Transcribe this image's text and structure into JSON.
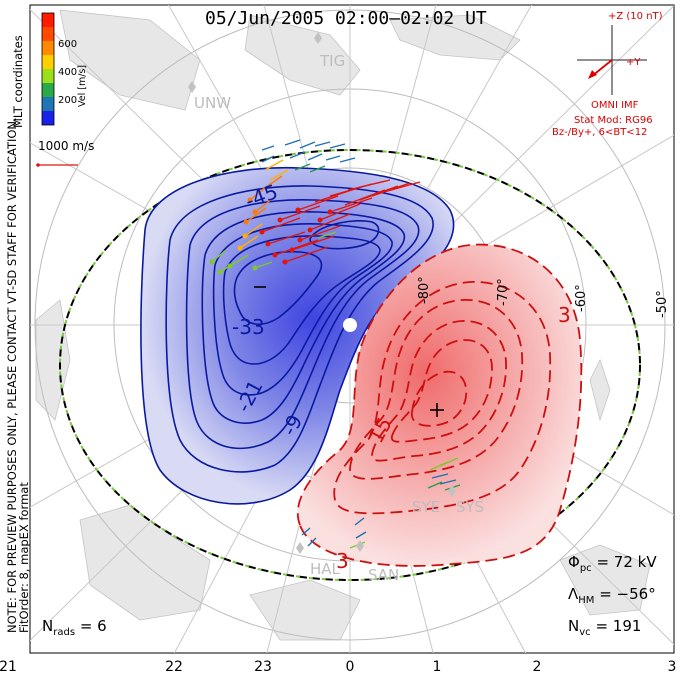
{
  "title": "05/Jun/2005 02:00–02:02 UT",
  "colorbar": {
    "title": "MLT coordinates",
    "unit_label": "Vel [m/s]",
    "ticks": [
      "600",
      "400",
      "200"
    ],
    "colors": [
      "#ff1b00",
      "#ff6a00",
      "#ffb000",
      "#9be01a",
      "#2aa84a",
      "#1e77b4",
      "#1d3fd6",
      "#1a20e8"
    ]
  },
  "vector_scale": "1000 m/s",
  "imf_panel": {
    "z_label": "+Z (10 nT)",
    "y_label": "+Y",
    "imf_label": "OMNI IMF",
    "stat_mod": "Stat Mod: RG96",
    "condition": "Bz-/By+, 6<BT<12"
  },
  "preview_note": "NOTE: FOR PREVIEW PURPOSES ONLY, PLEASE CONTACT VT-SD STAFF FOR VERIFICATION.",
  "fit_note": "FitOrder: 8, mapEX format",
  "mlt_labels": [
    "21",
    "22",
    "23",
    "0",
    "1",
    "2",
    "3"
  ],
  "latitude_labels": [
    "-50°",
    "-60°",
    "-70°",
    "-80°"
  ],
  "stations": [
    "TIG",
    "UNW",
    "SYE",
    "SYS",
    "HAL",
    "SAN"
  ],
  "contour_labels": {
    "negative": [
      "-9",
      "-21",
      "-33",
      "-45",
      "-"
    ],
    "positive": [
      "3",
      "15",
      "+",
      "3"
    ]
  },
  "stats": {
    "phi_pc": "Φpc = 72 kV",
    "phi_sym": "Φ",
    "phi_sub": "pc",
    "phi_val": "= 72 kV",
    "lambda_sym": "Λ",
    "lambda_sub": "HM",
    "lambda_val": "= −56°",
    "nvc_sym": "N",
    "nvc_sub": "vc",
    "nvc_val": "= 191",
    "nrads_sym": "N",
    "nrads_sub": "rads",
    "nrads_val": "= 6"
  },
  "colors": {
    "negative_contour": "#0a1aa0",
    "positive_contour": "#cc1010",
    "hmb": "#7ac943"
  }
}
